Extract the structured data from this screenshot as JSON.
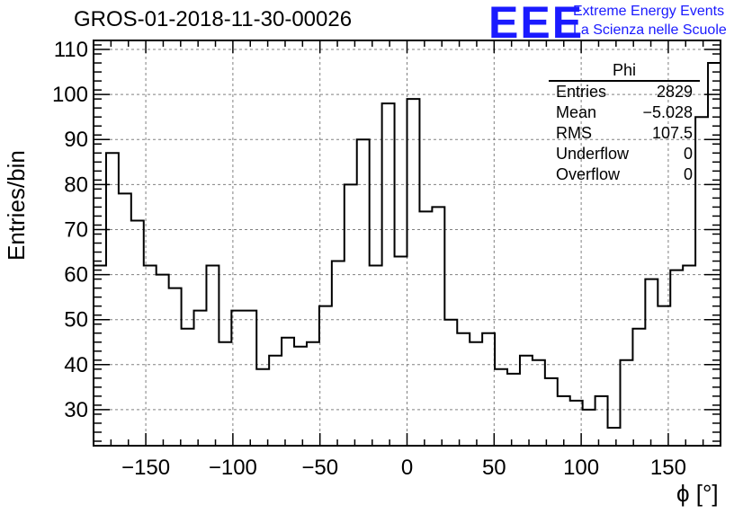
{
  "header": {
    "title": "GROS-01-2018-11-30-00026",
    "logo_mark": "EEE",
    "logo_line1": "Extreme Energy Events",
    "logo_line2": "La Scienza nelle Scuole"
  },
  "stats_box": {
    "title": "Phi",
    "rows": [
      {
        "label": "Entries",
        "value": "2829"
      },
      {
        "label": "Mean",
        "value": "−5.028"
      },
      {
        "label": "RMS",
        "value": "107.5"
      },
      {
        "label": "Underflow",
        "value": "0"
      },
      {
        "label": "Overflow",
        "value": "0"
      }
    ]
  },
  "colors": {
    "line": "#000000",
    "grid": "#808080",
    "logo": "#1a1aff"
  },
  "chart_data": {
    "type": "histogram",
    "title": "GROS-01-2018-11-30-00026",
    "xlabel": "ϕ [°]",
    "ylabel": "Entries/bin",
    "xlim": [
      -180,
      180
    ],
    "ylim": [
      22,
      112
    ],
    "grid": true,
    "bin_width": 7.2,
    "xticks": [
      -150,
      -100,
      -50,
      0,
      50,
      100,
      150
    ],
    "xtick_labels": [
      "−150",
      "−100",
      "−50",
      "0",
      "50",
      "100",
      "150"
    ],
    "yticks": [
      30,
      40,
      50,
      60,
      70,
      80,
      90,
      100,
      110
    ],
    "yticks_labels": [
      "30",
      "40",
      "50",
      "60",
      "70",
      "80",
      "90",
      "100",
      "110"
    ],
    "values": [
      62,
      87,
      78,
      72,
      62,
      60,
      57,
      48,
      52,
      62,
      45,
      52,
      52,
      39,
      42,
      46,
      44,
      45,
      53,
      63,
      80,
      90,
      62,
      98,
      64,
      99,
      74,
      75,
      50,
      47,
      45,
      47,
      39,
      38,
      42,
      41,
      37,
      33,
      32,
      30,
      33,
      26,
      41,
      48,
      59,
      53,
      61,
      62,
      95,
      107
    ]
  }
}
